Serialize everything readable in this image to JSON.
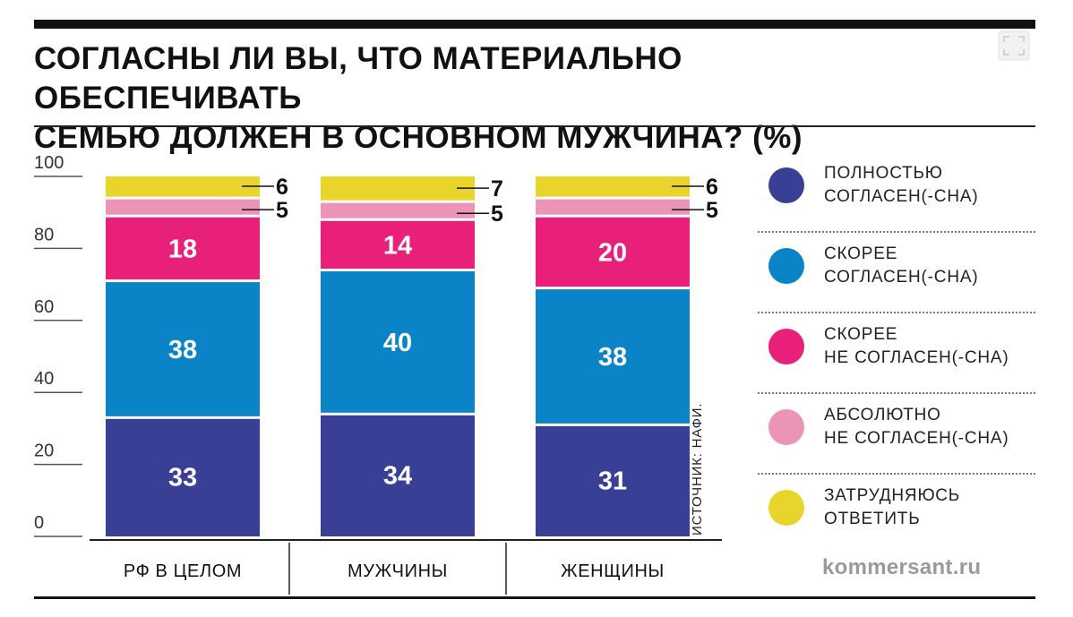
{
  "title_line1": "СОГЛАСНЫ ЛИ ВЫ, ЧТО МАТЕРИАЛЬНО ОБЕСПЕЧИВАТЬ",
  "title_line2": "СЕМЬЮ ДОЛЖЕН В ОСНОВНОМ МУЖЧИНА? (%)",
  "source": "ИСТОЧНИК: НАФИ.",
  "brand": "kommersant.ru",
  "legend": [
    {
      "label": "ПОЛНОСТЬЮ\nСОГЛАСЕН(-СНА)",
      "color": "#3a3f96"
    },
    {
      "label": "СКОРЕЕ\nСОГЛАСЕН(-СНА)",
      "color": "#0a84c6"
    },
    {
      "label": "СКОРЕЕ\nНЕ СОГЛАСЕН(-СНА)",
      "color": "#e8207a"
    },
    {
      "label": "АБСОЛЮТНО\nНЕ СОГЛАСЕН(-СНА)",
      "color": "#ec93b8"
    },
    {
      "label": "ЗАТРУДНЯЮСЬ\nОТВЕТИТЬ",
      "color": "#e8d42a"
    }
  ],
  "chart_data": {
    "type": "bar",
    "stacked": true,
    "categories": [
      "РФ В ЦЕЛОМ",
      "МУЖЧИНЫ",
      "ЖЕНЩИНЫ"
    ],
    "series": [
      {
        "name": "ПОЛНОСТЬЮ СОГЛАСЕН(-СНА)",
        "values": [
          33,
          34,
          31
        ],
        "color": "#3a3f96"
      },
      {
        "name": "СКОРЕЕ СОГЛАСЕН(-СНА)",
        "values": [
          38,
          40,
          38
        ],
        "color": "#0a84c6"
      },
      {
        "name": "СКОРЕЕ НЕ СОГЛАСЕН(-СНА)",
        "values": [
          18,
          14,
          20
        ],
        "color": "#e8207a"
      },
      {
        "name": "АБСОЛЮТНО НЕ СОГЛАСЕН(-СНА)",
        "values": [
          5,
          5,
          5
        ],
        "color": "#ec93b8"
      },
      {
        "name": "ЗАТРУДНЯЮСЬ ОТВЕТИТЬ",
        "values": [
          6,
          7,
          6
        ],
        "color": "#e8d42a"
      }
    ],
    "yticks": [
      0,
      20,
      40,
      60,
      80,
      100
    ],
    "ylim": [
      0,
      100
    ],
    "grid": false,
    "legend_position": "right"
  }
}
